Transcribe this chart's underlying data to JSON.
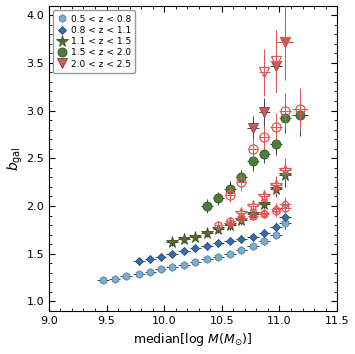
{
  "xlabel": "median[log $M(M_{\\odot})$]",
  "ylabel": "$b_{\\rm gal}$",
  "xlim": [
    9.0,
    11.5
  ],
  "ylim": [
    0.9,
    4.1
  ],
  "xticks": [
    9.0,
    9.5,
    10.0,
    10.5,
    11.0,
    11.5
  ],
  "yticks": [
    1.0,
    1.5,
    2.0,
    2.5,
    3.0,
    3.5,
    4.0
  ],
  "filled_series": [
    {
      "label": "0.5 < z < 0.8",
      "marker": "h",
      "color": "#7baec8",
      "edgecolor": "#4d7fa6",
      "x": [
        9.47,
        9.57,
        9.67,
        9.78,
        9.88,
        9.97,
        10.07,
        10.17,
        10.27,
        10.37,
        10.47,
        10.57,
        10.67,
        10.77,
        10.87,
        10.97,
        11.05
      ],
      "y": [
        1.22,
        1.24,
        1.27,
        1.29,
        1.31,
        1.34,
        1.36,
        1.38,
        1.41,
        1.44,
        1.47,
        1.5,
        1.54,
        1.58,
        1.63,
        1.7,
        1.82
      ],
      "xerr": [
        0.05,
        0.05,
        0.05,
        0.05,
        0.05,
        0.05,
        0.05,
        0.05,
        0.05,
        0.05,
        0.05,
        0.05,
        0.05,
        0.05,
        0.05,
        0.05,
        0.05
      ],
      "yerr": [
        0.03,
        0.03,
        0.03,
        0.03,
        0.02,
        0.02,
        0.02,
        0.02,
        0.02,
        0.02,
        0.02,
        0.02,
        0.03,
        0.03,
        0.04,
        0.04,
        0.06
      ]
    },
    {
      "label": "0.8 < z < 1.1",
      "marker": "D",
      "color": "#3a6ca8",
      "edgecolor": "#1e4a80",
      "x": [
        9.78,
        9.88,
        9.97,
        10.07,
        10.17,
        10.27,
        10.37,
        10.47,
        10.57,
        10.67,
        10.77,
        10.87,
        10.97,
        11.05
      ],
      "y": [
        1.42,
        1.44,
        1.47,
        1.5,
        1.53,
        1.56,
        1.58,
        1.61,
        1.63,
        1.65,
        1.68,
        1.72,
        1.78,
        1.88
      ],
      "xerr": [
        0.05,
        0.05,
        0.05,
        0.05,
        0.05,
        0.05,
        0.05,
        0.05,
        0.05,
        0.05,
        0.05,
        0.05,
        0.05,
        0.05
      ],
      "yerr": [
        0.04,
        0.04,
        0.03,
        0.03,
        0.03,
        0.03,
        0.03,
        0.03,
        0.03,
        0.03,
        0.04,
        0.04,
        0.05,
        0.07
      ]
    },
    {
      "label": "1.1 < z < 1.5",
      "marker": "*",
      "color": "#556b2f",
      "edgecolor": "#3a4d1e",
      "x": [
        10.07,
        10.17,
        10.27,
        10.37,
        10.47,
        10.57,
        10.67,
        10.77,
        10.87,
        10.97,
        11.05
      ],
      "y": [
        1.62,
        1.65,
        1.68,
        1.72,
        1.76,
        1.8,
        1.85,
        1.92,
        2.02,
        2.18,
        2.32
      ],
      "xerr": [
        0.05,
        0.05,
        0.05,
        0.05,
        0.05,
        0.05,
        0.05,
        0.05,
        0.05,
        0.05,
        0.05
      ],
      "yerr": [
        0.04,
        0.04,
        0.04,
        0.04,
        0.04,
        0.05,
        0.05,
        0.06,
        0.07,
        0.09,
        0.12
      ]
    },
    {
      "label": "1.5 < z < 2.0",
      "marker": "o",
      "color": "#4e7c3a",
      "edgecolor": "#2e5020",
      "x": [
        10.37,
        10.47,
        10.57,
        10.67,
        10.77,
        10.87,
        10.97,
        11.05,
        11.18
      ],
      "y": [
        2.0,
        2.08,
        2.18,
        2.3,
        2.47,
        2.55,
        2.65,
        2.92,
        2.95
      ],
      "xerr": [
        0.05,
        0.05,
        0.05,
        0.05,
        0.05,
        0.05,
        0.05,
        0.05,
        0.07
      ],
      "yerr": [
        0.07,
        0.07,
        0.08,
        0.08,
        0.1,
        0.1,
        0.12,
        0.16,
        0.22
      ]
    },
    {
      "label": "2.0 < z < 2.5",
      "marker": "v",
      "color": "#c06060",
      "edgecolor": "#903030",
      "x": [
        10.77,
        10.87,
        10.97,
        11.05
      ],
      "y": [
        2.82,
        2.98,
        3.47,
        3.72
      ],
      "xerr": [
        0.05,
        0.05,
        0.05,
        0.07
      ],
      "yerr": [
        0.12,
        0.15,
        0.28,
        0.38
      ]
    }
  ],
  "open_series": [
    {
      "marker": "h",
      "x": [
        10.47,
        10.57,
        10.67,
        10.77,
        10.87,
        10.97,
        11.05
      ],
      "y": [
        1.8,
        1.84,
        1.87,
        1.9,
        1.92,
        1.95,
        1.98
      ],
      "xerr": [
        0.04,
        0.04,
        0.04,
        0.04,
        0.04,
        0.04,
        0.05
      ],
      "yerr": [
        0.04,
        0.04,
        0.04,
        0.05,
        0.05,
        0.06,
        0.07
      ]
    },
    {
      "marker": "D",
      "x": [
        10.57,
        10.67,
        10.77,
        10.87,
        10.97,
        11.05
      ],
      "y": [
        1.82,
        1.87,
        1.9,
        1.93,
        1.97,
        2.02
      ],
      "xerr": [
        0.04,
        0.04,
        0.04,
        0.04,
        0.04,
        0.05
      ],
      "yerr": [
        0.04,
        0.04,
        0.05,
        0.05,
        0.06,
        0.07
      ]
    },
    {
      "marker": "*",
      "x": [
        10.67,
        10.77,
        10.87,
        10.97,
        11.05
      ],
      "y": [
        1.93,
        2.0,
        2.1,
        2.22,
        2.38
      ],
      "xerr": [
        0.04,
        0.04,
        0.04,
        0.05,
        0.05
      ],
      "yerr": [
        0.05,
        0.06,
        0.07,
        0.09,
        0.12
      ]
    },
    {
      "marker": "o",
      "x": [
        10.57,
        10.67,
        10.77,
        10.87,
        10.97,
        11.05,
        11.18
      ],
      "y": [
        2.12,
        2.25,
        2.6,
        2.72,
        2.83,
        3.0,
        3.02
      ],
      "xerr": [
        0.04,
        0.04,
        0.04,
        0.05,
        0.05,
        0.05,
        0.07
      ],
      "yerr": [
        0.08,
        0.09,
        0.11,
        0.12,
        0.14,
        0.18,
        0.22
      ]
    },
    {
      "marker": "v",
      "x": [
        10.87,
        10.97,
        11.05
      ],
      "y": [
        3.4,
        3.52,
        3.72
      ],
      "xerr": [
        0.05,
        0.05,
        0.07
      ],
      "yerr": [
        0.25,
        0.32,
        0.4
      ]
    }
  ],
  "open_color": "#e05555",
  "legend_entries": [
    {
      "label": "0.5 < z < 0.8",
      "marker": "h",
      "color": "#7baec8",
      "edgecolor": "#4d7fa6"
    },
    {
      "label": "0.8 < z < 1.1",
      "marker": "D",
      "color": "#3a6ca8",
      "edgecolor": "#1e4a80"
    },
    {
      "label": "1.1 < z < 1.5",
      "marker": "*",
      "color": "#556b2f",
      "edgecolor": "#3a4d1e"
    },
    {
      "label": "1.5 < z < 2.0",
      "marker": "o",
      "color": "#4e7c3a",
      "edgecolor": "#2e5020"
    },
    {
      "label": "2.0 < z < 2.5",
      "marker": "v",
      "color": "#c06060",
      "edgecolor": "#903030"
    }
  ]
}
